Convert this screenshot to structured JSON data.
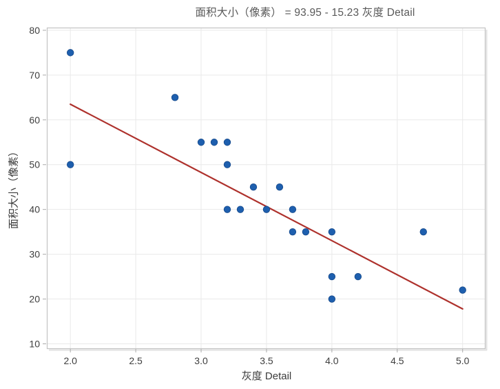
{
  "chart_data": {
    "type": "scatter",
    "title": "面积大小（像素） = 93.95 - 15.23 灰度 Detail",
    "xlabel": "灰度 Detail",
    "ylabel": "面积大小（像素）",
    "xlim": [
      1.82,
      5.17
    ],
    "ylim": [
      9.0,
      80.6
    ],
    "xticks": [
      2.0,
      2.5,
      3.0,
      3.5,
      4.0,
      4.5,
      5.0
    ],
    "xtick_labels": [
      "2.0",
      "2.5",
      "3.0",
      "3.5",
      "4.0",
      "4.5",
      "5.0"
    ],
    "yticks": [
      10,
      20,
      30,
      40,
      50,
      60,
      70,
      80
    ],
    "ytick_labels": [
      "10",
      "20",
      "30",
      "40",
      "50",
      "60",
      "70",
      "80"
    ],
    "grid": true,
    "legend": "none",
    "points": [
      [
        2.0,
        75
      ],
      [
        2.0,
        50
      ],
      [
        2.8,
        65
      ],
      [
        3.0,
        55
      ],
      [
        3.1,
        55
      ],
      [
        3.2,
        55
      ],
      [
        3.2,
        50
      ],
      [
        3.2,
        40
      ],
      [
        3.3,
        40
      ],
      [
        3.4,
        45
      ],
      [
        3.5,
        40
      ],
      [
        3.6,
        45
      ],
      [
        3.7,
        40
      ],
      [
        3.7,
        35
      ],
      [
        3.8,
        35
      ],
      [
        4.0,
        35
      ],
      [
        4.0,
        25
      ],
      [
        4.0,
        20
      ],
      [
        4.2,
        25
      ],
      [
        4.7,
        35
      ],
      [
        5.0,
        22
      ]
    ],
    "fit_line": {
      "equation": "面积大小（像素） = 93.95 - 15.23 灰度 Detail",
      "intercept": 93.95,
      "slope": -15.23,
      "x_start": 2.0,
      "x_end": 5.0
    },
    "colors": {
      "point": "#1e5fae",
      "point_stroke": "#16498a",
      "line": "#ae312c",
      "grid": "#e9e9e9",
      "frame": "#c2c2c2",
      "frame_shadow": "#e0e0e0",
      "tick": "#aaaaaa",
      "tick_label": "#3e3e3e",
      "axis_label": "#3a3a3a",
      "title": "#595959"
    }
  }
}
